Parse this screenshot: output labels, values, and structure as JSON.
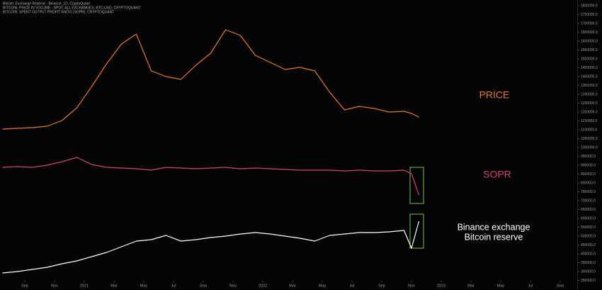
{
  "chart_data": {
    "type": "line",
    "titles": [
      "Bitcoin: Exchange Reserve - Binance, 1D, CryptoQuant",
      "BITCOIN: PRICE IN VOLUME - SPOT, ALL EXCHANGES, BTC-USD, CRYPTOQUANT",
      "BITCOIN: SPENT OUTPUT PROFIT RATIO (SOPR), CRYPTOQUANT"
    ],
    "x": [
      -0.5,
      0.5,
      1.5,
      2.5,
      3.5,
      4.5,
      5.5,
      6.5,
      7.5,
      8.5,
      9.5,
      10.5,
      11.5,
      12.5,
      13.5,
      14.5,
      15.5,
      16.5,
      17.5,
      18.5,
      19.5,
      20.5,
      21.5,
      22.5,
      23.5,
      24.5,
      25.5,
      26.5,
      27,
      27.5
    ],
    "xlim": [
      -0.667,
      38.143
    ],
    "xticks": [
      {
        "value": 1,
        "label": "Sep"
      },
      {
        "value": 3,
        "label": "Nov"
      },
      {
        "value": 5,
        "label": "2021"
      },
      {
        "value": 7,
        "label": "Mar"
      },
      {
        "value": 9,
        "label": "May"
      },
      {
        "value": 11,
        "label": "Jul"
      },
      {
        "value": 13,
        "label": "Sep"
      },
      {
        "value": 15,
        "label": "Nov"
      },
      {
        "value": 17,
        "label": "2022"
      },
      {
        "value": 19,
        "label": "Mar"
      },
      {
        "value": 21,
        "label": "May"
      },
      {
        "value": 23,
        "label": "Jul"
      },
      {
        "value": 25,
        "label": "Sep"
      },
      {
        "value": 27,
        "label": "Nov"
      },
      {
        "value": 29,
        "label": "2023"
      },
      {
        "value": 31,
        "label": "Mar"
      },
      {
        "value": 33,
        "label": "May"
      },
      {
        "value": 35,
        "label": "Jul"
      },
      {
        "value": 37,
        "label": "Sep"
      }
    ],
    "ylim": [
      196000,
      1832000
    ],
    "yticks": [
      {
        "value": 1800000,
        "label": "1800000.0"
      },
      {
        "value": 1750000,
        "label": "1750000.0"
      },
      {
        "value": 1700000,
        "label": "1700000.0"
      },
      {
        "value": 1650000,
        "label": "1650000.0"
      },
      {
        "value": 1600000,
        "label": "1600000.0"
      },
      {
        "value": 1550000,
        "label": "1550000.0"
      },
      {
        "value": 1500000,
        "label": "1500000.0"
      },
      {
        "value": 1450000,
        "label": "1450000.0"
      },
      {
        "value": 1400000,
        "label": "1400000.0"
      },
      {
        "value": 1350000,
        "label": "1350000.0"
      },
      {
        "value": 1300000,
        "label": "1300000.0"
      },
      {
        "value": 1250000,
        "label": "1250000.0"
      },
      {
        "value": 1200000,
        "label": "1200000.0"
      },
      {
        "value": 1150000,
        "label": "1150000.0"
      },
      {
        "value": 1100000,
        "label": "1100000.0"
      },
      {
        "value": 1050000,
        "label": "1050000.0"
      },
      {
        "value": 1000000,
        "label": "1000000.0"
      },
      {
        "value": 950000,
        "label": "950000.0"
      },
      {
        "value": 900000,
        "label": "900000.0"
      },
      {
        "value": 850000,
        "label": "850000.0"
      },
      {
        "value": 800000,
        "label": "800000.0"
      },
      {
        "value": 750000,
        "label": "750000.0"
      },
      {
        "value": 700000,
        "label": "700000.0"
      },
      {
        "value": 650000,
        "label": "650000.0"
      },
      {
        "value": 600000,
        "label": "600000.0"
      },
      {
        "value": 550000,
        "label": "550000.0"
      },
      {
        "value": 500000,
        "label": "500000.0"
      },
      {
        "value": 450000,
        "label": "450000.0"
      },
      {
        "value": 400000,
        "label": "400000.0"
      },
      {
        "value": 350000,
        "label": "350000.0"
      },
      {
        "value": 300000,
        "label": "300000.0"
      },
      {
        "value": 250000,
        "label": "250000.0"
      }
    ],
    "series": [
      {
        "name": "PRİCE",
        "color": "#e8782b",
        "values": [
          1104000,
          1108000,
          1112000,
          1120000,
          1152000,
          1224000,
          1344000,
          1472000,
          1584000,
          1640000,
          1432000,
          1400000,
          1384000,
          1464000,
          1532000,
          1664000,
          1632000,
          1520000,
          1480000,
          1440000,
          1452000,
          1432000,
          1312000,
          1212000,
          1232000,
          1220000,
          1200000,
          1204000,
          1192000,
          1172000
        ]
      },
      {
        "name": "SOPR",
        "color": "#d9406b",
        "values": [
          888000,
          892000,
          888000,
          900000,
          920000,
          944000,
          904000,
          888000,
          884000,
          880000,
          872000,
          888000,
          884000,
          880000,
          884000,
          888000,
          880000,
          884000,
          880000,
          876000,
          872000,
          872000,
          872000,
          868000,
          872000,
          868000,
          868000,
          872000,
          852000,
          732000
        ]
      },
      {
        "name": [
          "Binance exchange",
          "Bitcoin reserve"
        ],
        "color": "#ffffff",
        "values": [
          292000,
          300000,
          312000,
          324000,
          344000,
          360000,
          384000,
          408000,
          440000,
          472000,
          480000,
          504000,
          472000,
          480000,
          492000,
          500000,
          512000,
          520000,
          512000,
          500000,
          488000,
          472000,
          504000,
          512000,
          520000,
          520000,
          524000,
          532000,
          432000,
          584000
        ]
      }
    ]
  }
}
